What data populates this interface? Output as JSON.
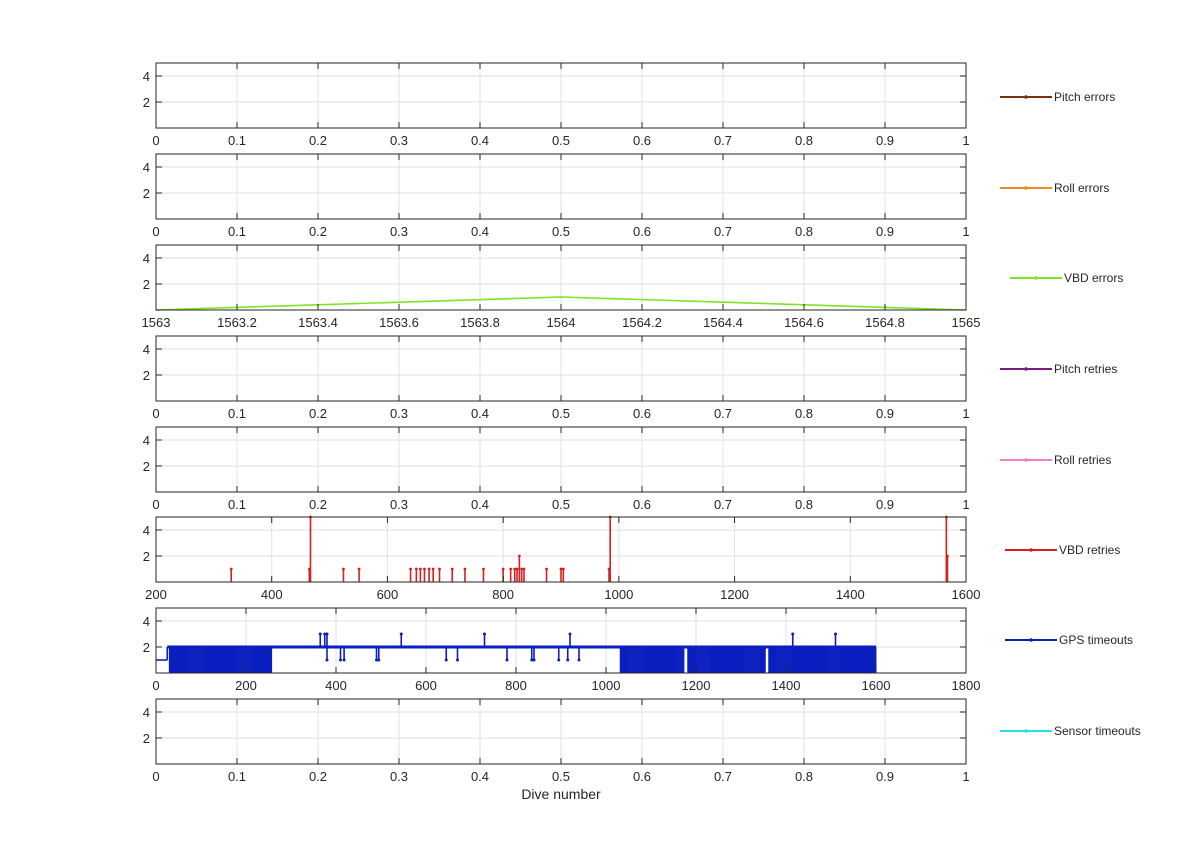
{
  "chart_data": [
    {
      "type": "line",
      "ylim": [
        0,
        5
      ],
      "yticks": [
        2,
        4
      ],
      "xlim": [
        0,
        1
      ],
      "xticks": [
        0,
        0.1,
        0.2,
        0.3,
        0.4,
        0.5,
        0.6,
        0.7,
        0.8,
        0.9,
        1
      ],
      "xticklabels": [
        "0",
        "0.1",
        "0.2",
        "0.3",
        "0.4",
        "0.5",
        "0.6",
        "0.7",
        "0.8",
        "0.9",
        "1"
      ],
      "xlabel": "",
      "grid": true,
      "legend_position": "right",
      "series": [
        {
          "name": "Pitch errors",
          "color": "#7E2F0E",
          "mode": "none",
          "x": [],
          "y": []
        }
      ]
    },
    {
      "type": "line",
      "ylim": [
        0,
        5
      ],
      "yticks": [
        2,
        4
      ],
      "xlim": [
        0,
        1
      ],
      "xticks": [
        0,
        0.1,
        0.2,
        0.3,
        0.4,
        0.5,
        0.6,
        0.7,
        0.8,
        0.9,
        1
      ],
      "xticklabels": [
        "0",
        "0.1",
        "0.2",
        "0.3",
        "0.4",
        "0.5",
        "0.6",
        "0.7",
        "0.8",
        "0.9",
        "1"
      ],
      "xlabel": "",
      "grid": true,
      "legend_position": "right",
      "series": [
        {
          "name": "Roll errors",
          "color": "#EE8A1E",
          "mode": "none",
          "x": [],
          "y": []
        }
      ]
    },
    {
      "type": "line",
      "ylim": [
        0,
        5
      ],
      "yticks": [
        2,
        4
      ],
      "xlim": [
        1563,
        1565
      ],
      "xticks": [
        1563,
        1563.2,
        1563.4,
        1563.6,
        1563.8,
        1564,
        1564.2,
        1564.4,
        1564.6,
        1564.8,
        1565
      ],
      "xticklabels": [
        "1563",
        "1563.2",
        "1563.4",
        "1563.6",
        "1563.8",
        "1564",
        "1564.2",
        "1564.4",
        "1564.6",
        "1564.8",
        "1565"
      ],
      "xlabel": "",
      "grid": true,
      "legend_position": "right",
      "series": [
        {
          "name": "VBD errors",
          "color": "#7FE325",
          "mode": "line",
          "x": [
            1563,
            1564,
            1565
          ],
          "y": [
            0,
            1,
            0
          ]
        }
      ]
    },
    {
      "type": "line",
      "ylim": [
        0,
        5
      ],
      "yticks": [
        2,
        4
      ],
      "xlim": [
        0,
        1
      ],
      "xticks": [
        0,
        0.1,
        0.2,
        0.3,
        0.4,
        0.5,
        0.6,
        0.7,
        0.8,
        0.9,
        1
      ],
      "xticklabels": [
        "0",
        "0.1",
        "0.2",
        "0.3",
        "0.4",
        "0.5",
        "0.6",
        "0.7",
        "0.8",
        "0.9",
        "1"
      ],
      "xlabel": "",
      "grid": true,
      "legend_position": "right",
      "series": [
        {
          "name": "Pitch retries",
          "color": "#7D1A80",
          "mode": "none",
          "x": [],
          "y": []
        }
      ]
    },
    {
      "type": "line",
      "ylim": [
        0,
        5
      ],
      "yticks": [
        2,
        4
      ],
      "xlim": [
        0,
        1
      ],
      "xticks": [
        0,
        0.1,
        0.2,
        0.3,
        0.4,
        0.5,
        0.6,
        0.7,
        0.8,
        0.9,
        1
      ],
      "xticklabels": [
        "0",
        "0.1",
        "0.2",
        "0.3",
        "0.4",
        "0.5",
        "0.6",
        "0.7",
        "0.8",
        "0.9",
        "1"
      ],
      "xlabel": "",
      "grid": true,
      "legend_position": "right",
      "series": [
        {
          "name": "Roll retries",
          "color": "#F57DC8",
          "mode": "none",
          "x": [],
          "y": []
        }
      ]
    },
    {
      "type": "line",
      "ylim": [
        0,
        5
      ],
      "yticks": [
        2,
        4
      ],
      "xlim": [
        200,
        1600
      ],
      "xticks": [
        200,
        400,
        600,
        800,
        1000,
        1200,
        1400,
        1600
      ],
      "xticklabels": [
        "200",
        "400",
        "600",
        "800",
        "1000",
        "1200",
        "1400",
        "1600"
      ],
      "xlabel": "",
      "grid": true,
      "legend_position": "right",
      "series": [
        {
          "name": "VBD retries",
          "color": "#D81E1E",
          "mode": "spikes",
          "x": [
            330,
            465,
            467,
            524,
            551,
            640,
            650,
            657,
            664,
            672,
            679,
            690,
            712,
            734,
            766,
            800,
            813,
            820,
            824,
            828,
            832,
            836,
            875,
            900,
            904,
            983,
            985,
            1566,
            1568
          ],
          "y": [
            1,
            1,
            5,
            1,
            1,
            1,
            1,
            1,
            1,
            1,
            1,
            1,
            1,
            1,
            1,
            1,
            1,
            1,
            1,
            2,
            1,
            1,
            1,
            1,
            1,
            1,
            5,
            5,
            2
          ]
        }
      ]
    },
    {
      "type": "line",
      "ylim": [
        0,
        5
      ],
      "yticks": [
        2,
        4
      ],
      "xlim": [
        0,
        1800
      ],
      "xticks": [
        0,
        200,
        400,
        600,
        800,
        1000,
        1200,
        1400,
        1600,
        1800
      ],
      "xticklabels": [
        "0",
        "200",
        "400",
        "600",
        "800",
        "1000",
        "1200",
        "1400",
        "1600",
        "1800"
      ],
      "xlabel": "",
      "grid": true,
      "legend_position": "right",
      "series": [
        {
          "name": "GPS timeouts",
          "color": "#0B1FBF",
          "mode": "gps",
          "x": [
            0,
            25,
            30,
            260,
            262,
            1030,
            1032,
            1600
          ],
          "y": [
            1,
            1,
            2,
            2,
            2,
            2,
            2,
            2
          ],
          "dense_bands": [
            [
              30,
              258
            ],
            [
              1032,
              1175
            ],
            [
              1182,
              1355
            ],
            [
              1362,
              1600
            ]
          ],
          "up_spikes": [
            [
              365,
              3
            ],
            [
              375,
              3
            ],
            [
              380,
              3
            ],
            [
              545,
              3
            ],
            [
              730,
              3
            ],
            [
              920,
              3
            ],
            [
              1415,
              3
            ],
            [
              1510,
              3
            ]
          ],
          "down_spikes": [
            [
              380,
              1
            ],
            [
              410,
              1
            ],
            [
              418,
              1
            ],
            [
              490,
              1
            ],
            [
              495,
              1
            ],
            [
              645,
              1
            ],
            [
              670,
              1
            ],
            [
              780,
              1
            ],
            [
              835,
              1
            ],
            [
              840,
              1
            ],
            [
              895,
              1
            ],
            [
              915,
              1
            ],
            [
              940,
              1
            ]
          ]
        }
      ]
    },
    {
      "type": "line",
      "ylim": [
        0,
        5
      ],
      "yticks": [
        2,
        4
      ],
      "xlim": [
        0,
        1
      ],
      "xticks": [
        0,
        0.1,
        0.2,
        0.3,
        0.4,
        0.5,
        0.6,
        0.7,
        0.8,
        0.9,
        1
      ],
      "xticklabels": [
        "0",
        "0.1",
        "0.2",
        "0.3",
        "0.4",
        "0.5",
        "0.6",
        "0.7",
        "0.8",
        "0.9",
        "1"
      ],
      "xlabel": "Dive number",
      "grid": true,
      "legend_position": "right",
      "series": [
        {
          "name": "Sensor timeouts",
          "color": "#22E3EA",
          "mode": "none",
          "x": [],
          "y": []
        }
      ]
    }
  ]
}
